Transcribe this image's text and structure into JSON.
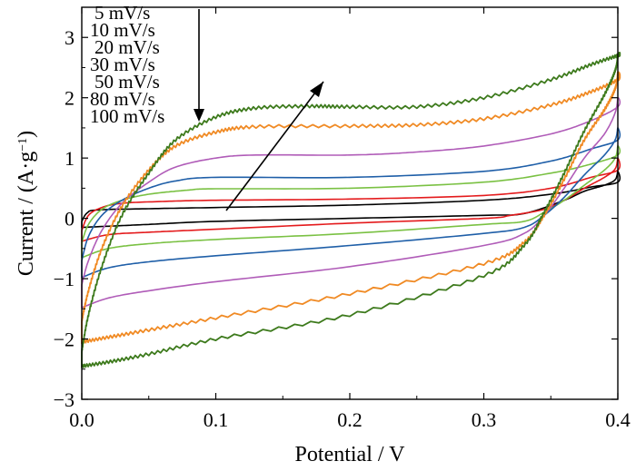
{
  "chart_data": {
    "type": "line",
    "title": "",
    "xlabel": "Potential / V",
    "ylabel_main": "Current / (A·g",
    "ylabel_sup": "−1",
    "ylabel_close": ")",
    "xlim": [
      0.0,
      0.4
    ],
    "ylim": [
      -3,
      3.5
    ],
    "xticks": [
      0.0,
      0.1,
      0.2,
      0.3,
      0.4
    ],
    "xtick_labels": [
      "0.0",
      "0.1",
      "0.2",
      "0.3",
      "0.4"
    ],
    "yticks": [
      -3,
      -2,
      -1,
      0,
      1,
      2,
      3
    ],
    "ytick_labels": [
      "−3",
      "−2",
      "−1",
      "0",
      "1",
      "2",
      "3"
    ],
    "grid": false,
    "legend_position": "top-left",
    "legend_arrow": "down",
    "trend_arrow": "increasing scan rate",
    "series": [
      {
        "name": "5 mV/s",
        "color": "#000000",
        "upper": [
          [
            0.0,
            -0.05
          ],
          [
            0.004,
            0.09
          ],
          [
            0.012,
            0.14
          ],
          [
            0.05,
            0.16
          ],
          [
            0.1,
            0.18
          ],
          [
            0.2,
            0.22
          ],
          [
            0.3,
            0.3
          ],
          [
            0.35,
            0.4
          ],
          [
            0.38,
            0.52
          ],
          [
            0.4,
            0.6
          ]
        ],
        "lower": [
          [
            0.4,
            0.78
          ],
          [
            0.398,
            0.64
          ],
          [
            0.39,
            0.55
          ],
          [
            0.375,
            0.45
          ],
          [
            0.36,
            0.3
          ],
          [
            0.33,
            0.08
          ],
          [
            0.3,
            0.05
          ],
          [
            0.2,
            0.0
          ],
          [
            0.1,
            -0.05
          ],
          [
            0.05,
            -0.1
          ],
          [
            0.02,
            -0.13
          ],
          [
            0.0,
            -0.15
          ]
        ],
        "noisy": false
      },
      {
        "name": "10 mV/s",
        "color": "#e41a1c",
        "upper": [
          [
            0.0,
            -0.2
          ],
          [
            0.005,
            0.05
          ],
          [
            0.015,
            0.18
          ],
          [
            0.03,
            0.25
          ],
          [
            0.06,
            0.28
          ],
          [
            0.1,
            0.3
          ],
          [
            0.2,
            0.32
          ],
          [
            0.3,
            0.38
          ],
          [
            0.35,
            0.5
          ],
          [
            0.38,
            0.68
          ],
          [
            0.4,
            0.8
          ]
        ],
        "lower": [
          [
            0.4,
            1.0
          ],
          [
            0.398,
            0.82
          ],
          [
            0.39,
            0.68
          ],
          [
            0.375,
            0.5
          ],
          [
            0.36,
            0.3
          ],
          [
            0.345,
            0.15
          ],
          [
            0.32,
            0.05
          ],
          [
            0.3,
            0.0
          ],
          [
            0.2,
            -0.08
          ],
          [
            0.1,
            -0.18
          ],
          [
            0.05,
            -0.23
          ],
          [
            0.02,
            -0.27
          ],
          [
            0.0,
            -0.38
          ]
        ],
        "noisy": false
      },
      {
        "name": "20 mV/s",
        "color": "#7ac143",
        "upper": [
          [
            0.0,
            -0.4
          ],
          [
            0.005,
            -0.1
          ],
          [
            0.015,
            0.15
          ],
          [
            0.03,
            0.3
          ],
          [
            0.05,
            0.4
          ],
          [
            0.08,
            0.47
          ],
          [
            0.1,
            0.49
          ],
          [
            0.2,
            0.5
          ],
          [
            0.3,
            0.6
          ],
          [
            0.35,
            0.75
          ],
          [
            0.38,
            0.9
          ],
          [
            0.4,
            1.05
          ]
        ],
        "lower": [
          [
            0.4,
            1.2
          ],
          [
            0.398,
            1.0
          ],
          [
            0.39,
            0.8
          ],
          [
            0.375,
            0.55
          ],
          [
            0.36,
            0.3
          ],
          [
            0.345,
            0.1
          ],
          [
            0.33,
            -0.05
          ],
          [
            0.3,
            -0.1
          ],
          [
            0.2,
            -0.25
          ],
          [
            0.1,
            -0.35
          ],
          [
            0.05,
            -0.42
          ],
          [
            0.02,
            -0.5
          ],
          [
            0.0,
            -0.65
          ]
        ],
        "noisy": false
      },
      {
        "name": "30 mV/s",
        "color": "#1f5fa8",
        "upper": [
          [
            0.0,
            -0.7
          ],
          [
            0.005,
            -0.3
          ],
          [
            0.015,
            0.05
          ],
          [
            0.03,
            0.3
          ],
          [
            0.05,
            0.5
          ],
          [
            0.07,
            0.62
          ],
          [
            0.1,
            0.68
          ],
          [
            0.2,
            0.68
          ],
          [
            0.3,
            0.78
          ],
          [
            0.35,
            0.95
          ],
          [
            0.38,
            1.15
          ],
          [
            0.4,
            1.3
          ]
        ],
        "lower": [
          [
            0.4,
            1.5
          ],
          [
            0.398,
            1.3
          ],
          [
            0.39,
            1.05
          ],
          [
            0.375,
            0.72
          ],
          [
            0.36,
            0.35
          ],
          [
            0.345,
            0.05
          ],
          [
            0.33,
            -0.15
          ],
          [
            0.3,
            -0.25
          ],
          [
            0.2,
            -0.45
          ],
          [
            0.1,
            -0.62
          ],
          [
            0.05,
            -0.72
          ],
          [
            0.02,
            -0.82
          ],
          [
            0.0,
            -0.98
          ]
        ],
        "noisy": false
      },
      {
        "name": "50 mV/s",
        "color": "#b05cb8",
        "upper": [
          [
            0.0,
            -1.1
          ],
          [
            0.005,
            -0.7
          ],
          [
            0.015,
            -0.2
          ],
          [
            0.03,
            0.25
          ],
          [
            0.05,
            0.6
          ],
          [
            0.07,
            0.85
          ],
          [
            0.1,
            1.0
          ],
          [
            0.13,
            1.05
          ],
          [
            0.2,
            1.05
          ],
          [
            0.25,
            1.1
          ],
          [
            0.3,
            1.2
          ],
          [
            0.35,
            1.4
          ],
          [
            0.38,
            1.62
          ],
          [
            0.4,
            1.85
          ]
        ],
        "lower": [
          [
            0.4,
            2.0
          ],
          [
            0.398,
            1.75
          ],
          [
            0.39,
            1.4
          ],
          [
            0.375,
            1.0
          ],
          [
            0.36,
            0.5
          ],
          [
            0.345,
            0.05
          ],
          [
            0.33,
            -0.25
          ],
          [
            0.3,
            -0.45
          ],
          [
            0.2,
            -0.8
          ],
          [
            0.1,
            -1.05
          ],
          [
            0.05,
            -1.2
          ],
          [
            0.02,
            -1.32
          ],
          [
            0.0,
            -1.48
          ]
        ],
        "noisy": false
      },
      {
        "name": "80 mV/s",
        "color": "#f08a24",
        "upper": [
          [
            0.0,
            -1.7
          ],
          [
            0.005,
            -1.2
          ],
          [
            0.015,
            -0.5
          ],
          [
            0.03,
            0.2
          ],
          [
            0.05,
            0.8
          ],
          [
            0.07,
            1.2
          ],
          [
            0.1,
            1.43
          ],
          [
            0.13,
            1.52
          ],
          [
            0.2,
            1.53
          ],
          [
            0.25,
            1.55
          ],
          [
            0.3,
            1.65
          ],
          [
            0.35,
            1.88
          ],
          [
            0.38,
            2.1
          ],
          [
            0.4,
            2.3
          ]
        ],
        "lower": [
          [
            0.4,
            2.4
          ],
          [
            0.398,
            2.15
          ],
          [
            0.39,
            1.8
          ],
          [
            0.375,
            1.3
          ],
          [
            0.36,
            0.65
          ],
          [
            0.345,
            0.05
          ],
          [
            0.33,
            -0.4
          ],
          [
            0.3,
            -0.75
          ],
          [
            0.2,
            -1.25
          ],
          [
            0.1,
            -1.65
          ],
          [
            0.05,
            -1.85
          ],
          [
            0.02,
            -1.97
          ],
          [
            0.0,
            -2.05
          ]
        ],
        "noisy": true
      },
      {
        "name": "100 mV/s",
        "color": "#3d7a1c",
        "upper": [
          [
            0.0,
            -2.2
          ],
          [
            0.005,
            -1.6
          ],
          [
            0.015,
            -0.8
          ],
          [
            0.03,
            0.05
          ],
          [
            0.05,
            0.75
          ],
          [
            0.07,
            1.3
          ],
          [
            0.1,
            1.68
          ],
          [
            0.13,
            1.83
          ],
          [
            0.17,
            1.86
          ],
          [
            0.2,
            1.85
          ],
          [
            0.25,
            1.85
          ],
          [
            0.3,
            2.0
          ],
          [
            0.35,
            2.3
          ],
          [
            0.38,
            2.55
          ],
          [
            0.4,
            2.7
          ]
        ],
        "lower": [
          [
            0.4,
            2.7
          ],
          [
            0.398,
            2.45
          ],
          [
            0.39,
            2.05
          ],
          [
            0.375,
            1.45
          ],
          [
            0.36,
            0.75
          ],
          [
            0.345,
            0.1
          ],
          [
            0.33,
            -0.45
          ],
          [
            0.3,
            -0.95
          ],
          [
            0.2,
            -1.6
          ],
          [
            0.1,
            -2.0
          ],
          [
            0.05,
            -2.25
          ],
          [
            0.02,
            -2.38
          ],
          [
            0.0,
            -2.45
          ]
        ],
        "noisy": true
      }
    ]
  }
}
